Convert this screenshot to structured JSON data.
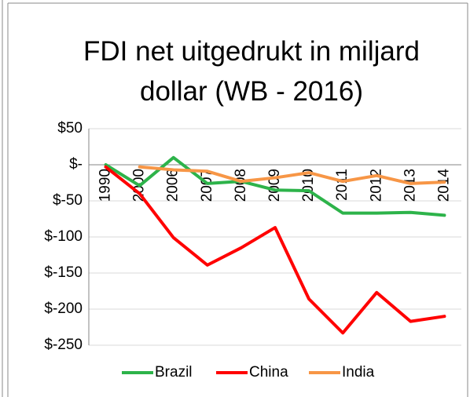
{
  "chart_data": {
    "type": "line",
    "title": "FDI net uitgedrukt in miljard dollar (WB - 2016)",
    "categories": [
      "1990",
      "2000",
      "2006",
      "2007",
      "2008",
      "2009",
      "2010",
      "2011",
      "2012",
      "2013",
      "2014"
    ],
    "series": [
      {
        "name": "Brazil",
        "color": "#2db34a",
        "values": [
          0,
          -29,
          10,
          -26,
          -23,
          -35,
          -36,
          -67,
          -67,
          -66,
          -70
        ]
      },
      {
        "name": "China",
        "color": "#ff0000",
        "values": [
          -3,
          -40,
          -101,
          -139,
          -115,
          -87,
          -186,
          -233,
          -177,
          -217,
          -210
        ]
      },
      {
        "name": "India",
        "color": "#f79646",
        "values": [
          null,
          -3,
          -7,
          -9,
          -23,
          -18,
          -11,
          -23,
          -15,
          -26,
          -24
        ]
      }
    ],
    "ylim": [
      -250,
      50
    ],
    "yticks": [
      {
        "value": 50,
        "label": "$50"
      },
      {
        "value": 0,
        "label": "$-"
      },
      {
        "value": -50,
        "label": "$-50"
      },
      {
        "value": -100,
        "label": "$-100"
      },
      {
        "value": -150,
        "label": "$-150"
      },
      {
        "value": -200,
        "label": "$-200"
      },
      {
        "value": -250,
        "label": "$-250"
      }
    ],
    "grid": true,
    "legend": "bottom"
  }
}
